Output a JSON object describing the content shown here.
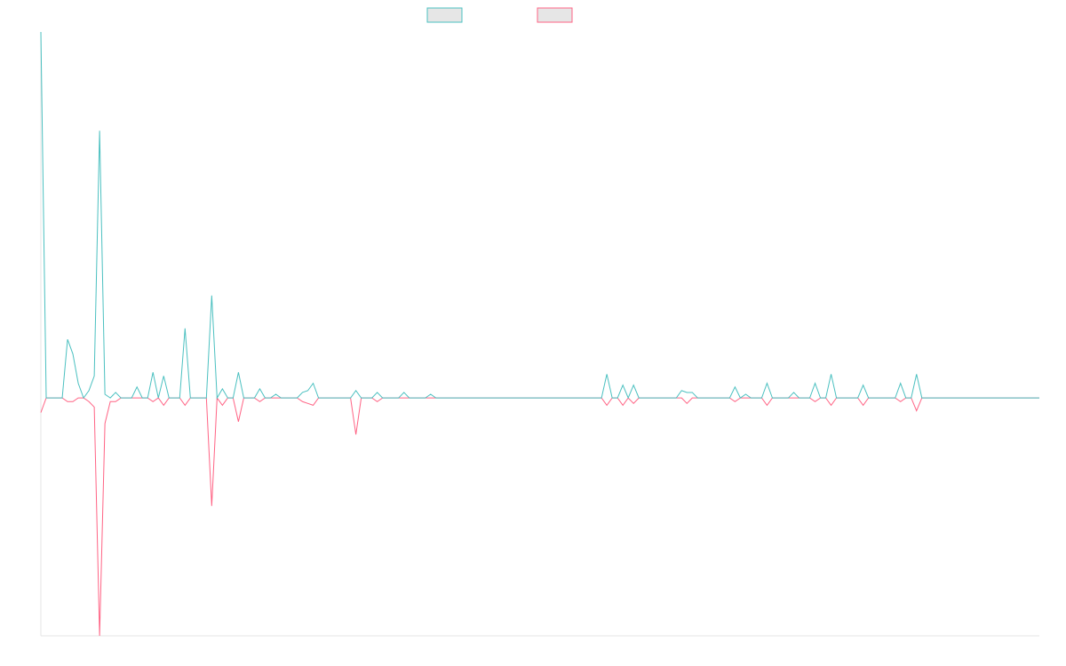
{
  "chart_data": {
    "type": "line",
    "categories": [
      null,
      null,
      null,
      null,
      null,
      null,
      null,
      null,
      null,
      null,
      null,
      null,
      null,
      null,
      null,
      null,
      null,
      null,
      null,
      null,
      null,
      null,
      null,
      null,
      null,
      null,
      null,
      null,
      null,
      null,
      null,
      null,
      null,
      null,
      null,
      null,
      null,
      null,
      null,
      null,
      null,
      null,
      null,
      null,
      null,
      null,
      null,
      null,
      null,
      null,
      null,
      null,
      null,
      null,
      null,
      null,
      null,
      null,
      null,
      null,
      null,
      null,
      null,
      null,
      null,
      null,
      null,
      null,
      null,
      null,
      null,
      null,
      null,
      null,
      null,
      null,
      null,
      null,
      null,
      null,
      null,
      null,
      null,
      null,
      null,
      null,
      null,
      null,
      null,
      null,
      null,
      null,
      null,
      null,
      null,
      null,
      null,
      null,
      null,
      null,
      null,
      null,
      null,
      null,
      null,
      null,
      null,
      null,
      null,
      null,
      null,
      null,
      null,
      null,
      null,
      null,
      null,
      null,
      null,
      null,
      null,
      null,
      null,
      null,
      null,
      null,
      null,
      null,
      null,
      null,
      null,
      null,
      null,
      null,
      null,
      null,
      null,
      null,
      null,
      null,
      null,
      null,
      null,
      null,
      null,
      null,
      null,
      null,
      null,
      null,
      null,
      null,
      null,
      null,
      null,
      null,
      null,
      null,
      null,
      null,
      null,
      null,
      null,
      null,
      null,
      null,
      null,
      null,
      null,
      null,
      null,
      null,
      null,
      null,
      null,
      null,
      null,
      null,
      null,
      null,
      null,
      null,
      null,
      null,
      null,
      null,
      null,
      null
    ],
    "series": [
      {
        "color": "#4bc0c0",
        "values": [
          100,
          0,
          0,
          0,
          0,
          16,
          12,
          4,
          0,
          2,
          6,
          73,
          1,
          0,
          1.5,
          0,
          0,
          0,
          3,
          0,
          0,
          7,
          0,
          6,
          0,
          0,
          0,
          19,
          0,
          0,
          0,
          0,
          28,
          0,
          2.5,
          0,
          0,
          7,
          0,
          0,
          0,
          2.5,
          0,
          0,
          1,
          0,
          0,
          0,
          0,
          1.5,
          2,
          4,
          0,
          0,
          0,
          0,
          0,
          0,
          0,
          2,
          0,
          0,
          0,
          1.5,
          0,
          0,
          0,
          0,
          1.5,
          0,
          0,
          0,
          0,
          1,
          0,
          0,
          0,
          0,
          0,
          0,
          0,
          0,
          0,
          0,
          0,
          0,
          0,
          0,
          0,
          0,
          0,
          0,
          0,
          0,
          0,
          0,
          0,
          0,
          0,
          0,
          0,
          0,
          0,
          0,
          0,
          0,
          6.5,
          0,
          0,
          3.5,
          0,
          3.5,
          0,
          0,
          0,
          0,
          0,
          0,
          0,
          0,
          2,
          1.5,
          1.5,
          0,
          0,
          0,
          0,
          0,
          0,
          0,
          3,
          0,
          1,
          0,
          0,
          0,
          4,
          0,
          0,
          0,
          0,
          1.5,
          0,
          0,
          0,
          4,
          0,
          0,
          6.5,
          0,
          0,
          0,
          0,
          0,
          3.5,
          0,
          0,
          0,
          0,
          0,
          0,
          4,
          0,
          0,
          6.5,
          0,
          0,
          0,
          0,
          0,
          0,
          0,
          0,
          0,
          0,
          0,
          0,
          0,
          0,
          0,
          0,
          0,
          0,
          0,
          0,
          0,
          0,
          0
        ]
      },
      {
        "color": "#ff6384",
        "values": [
          -4,
          0,
          0,
          0,
          0,
          -1,
          -1,
          0,
          0,
          -1,
          -2.5,
          -65,
          -7,
          -1,
          -1,
          0,
          0,
          0,
          0,
          0,
          0,
          -1,
          0,
          -2,
          0,
          0,
          0,
          -2,
          0,
          0,
          0,
          0,
          -29.5,
          0,
          -2,
          0,
          0,
          -6.5,
          0,
          0,
          0,
          -1,
          0,
          0,
          0,
          0,
          0,
          0,
          0,
          -1,
          -1.5,
          -2,
          0,
          0,
          0,
          0,
          0,
          0,
          0,
          -10,
          0,
          0,
          0,
          -1,
          0,
          0,
          0,
          0,
          0,
          0,
          0,
          0,
          0,
          0,
          0,
          0,
          0,
          0,
          0,
          0,
          0,
          0,
          0,
          0,
          0,
          0,
          0,
          0,
          0,
          0,
          0,
          0,
          0,
          0,
          0,
          0,
          0,
          0,
          0,
          0,
          0,
          0,
          0,
          0,
          0,
          0,
          -2,
          0,
          0,
          -2,
          0,
          -1.5,
          0,
          0,
          0,
          0,
          0,
          0,
          0,
          0,
          0,
          -1.5,
          0,
          0,
          0,
          0,
          0,
          0,
          0,
          0,
          -1,
          0,
          0,
          0,
          0,
          0,
          -2,
          0,
          0,
          0,
          0,
          0,
          0,
          0,
          0,
          -1,
          0,
          0,
          -2,
          0,
          0,
          0,
          0,
          0,
          -2,
          0,
          0,
          0,
          0,
          0,
          0,
          -1,
          0,
          0,
          -3.5,
          0,
          0,
          0,
          0,
          0,
          0,
          0,
          0,
          0,
          0,
          0,
          0,
          0,
          0,
          0,
          0,
          0,
          0,
          0,
          0,
          0,
          0,
          0
        ]
      }
    ],
    "ylim": [
      -65,
      100
    ]
  }
}
